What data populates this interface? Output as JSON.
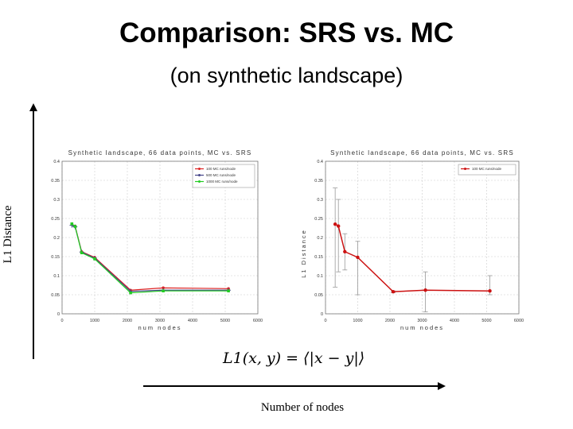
{
  "slide": {
    "title": "Comparison: SRS vs. MC",
    "subtitle": "(on synthetic landscape)",
    "y_axis_label": "L1 Distance",
    "x_axis_label": "Number of nodes",
    "formula": "L1(x, y) = ⟨|x − y|⟩"
  },
  "chart_data": [
    {
      "type": "line",
      "title": "Synthetic landscape, 66 data points, MC vs. SRS",
      "xlabel": "num nodes",
      "ylabel": "L1 Distance",
      "xlim": [
        0,
        6000
      ],
      "ylim": [
        0,
        0.4
      ],
      "xticks": [
        "0",
        "1000",
        "2000",
        "3000",
        "4000",
        "5000",
        "6000"
      ],
      "yticks": [
        "0",
        "0.05",
        "0.1",
        "0.15",
        "0.2",
        "0.25",
        "0.3",
        "0.35",
        "0.4"
      ],
      "grid": true,
      "legend_position": "top-right",
      "series": [
        {
          "name": "100 MC runs/node",
          "color": "#dd2222",
          "marker": "circle",
          "x": [
            300,
            400,
            600,
            1000,
            2100,
            3100,
            5100
          ],
          "y": [
            0.235,
            0.23,
            0.163,
            0.148,
            0.062,
            0.068,
            0.066
          ]
        },
        {
          "name": "500 MC runs/node",
          "color": "#444488",
          "marker": "plus",
          "x": [
            300,
            400,
            600,
            1000,
            2100,
            3100,
            5100
          ],
          "y": [
            0.232,
            0.228,
            0.162,
            0.146,
            0.059,
            0.062,
            0.062
          ]
        },
        {
          "name": "1000 MC runs/node",
          "color": "#22cc22",
          "marker": "square",
          "x": [
            300,
            400,
            600,
            1000,
            2100,
            3100,
            5100
          ],
          "y": [
            0.236,
            0.229,
            0.16,
            0.144,
            0.055,
            0.06,
            0.06
          ]
        }
      ]
    },
    {
      "type": "line",
      "title": "Synthetic landscape, 66 data points, MC vs. SRS",
      "xlabel": "num nodes",
      "ylabel": "L1 Distance",
      "xlim": [
        0,
        6000
      ],
      "ylim": [
        0,
        0.4
      ],
      "xticks": [
        "0",
        "1000",
        "2000",
        "3000",
        "4000",
        "5000",
        "6000"
      ],
      "yticks": [
        "0",
        "0.05",
        "0.1",
        "0.15",
        "0.2",
        "0.25",
        "0.3",
        "0.35",
        "0.4"
      ],
      "grid": true,
      "legend_position": "top-right",
      "series": [
        {
          "name": "100 MC runs/node",
          "color": "#cc1111",
          "marker": "circle",
          "x": [
            300,
            400,
            600,
            1000,
            2100,
            3100,
            5100
          ],
          "y": [
            0.235,
            0.23,
            0.163,
            0.148,
            0.058,
            0.062,
            0.06
          ],
          "err_low": [
            0.07,
            0.11,
            0.115,
            0.05,
            0.055,
            0.005,
            0.05
          ],
          "err_high": [
            0.33,
            0.3,
            0.21,
            0.19,
            0.06,
            0.11,
            0.1
          ]
        }
      ]
    }
  ]
}
